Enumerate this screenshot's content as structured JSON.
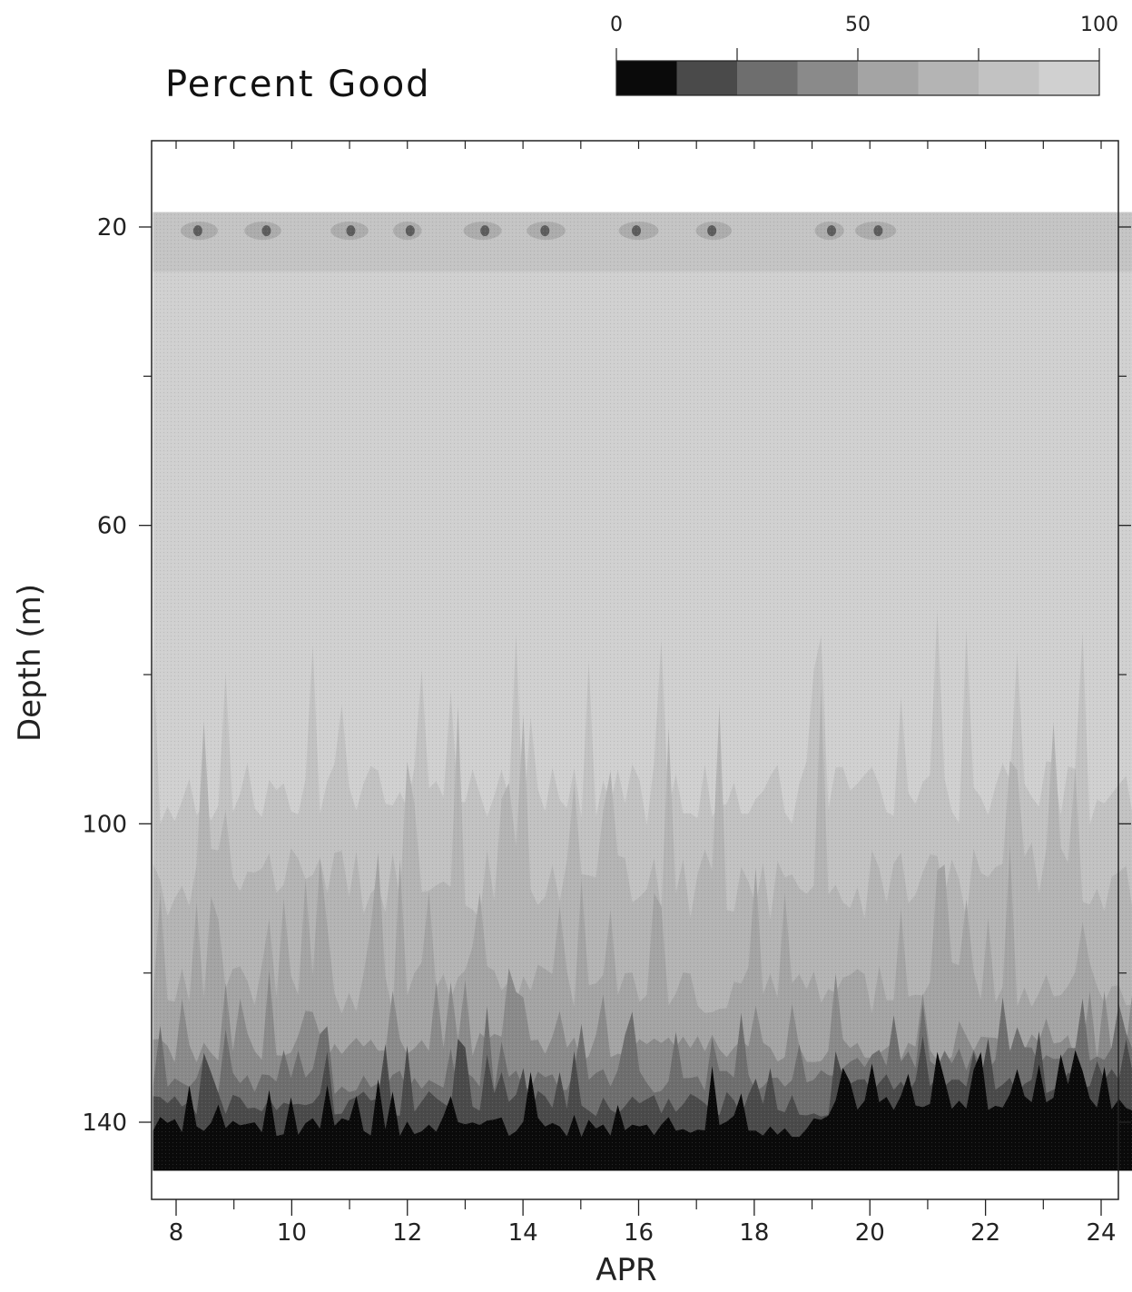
{
  "chart_data": {
    "type": "heatmap",
    "title": "Percent Good",
    "xlabel": "APR",
    "ylabel": "Depth (m)",
    "x_unit": "day of April",
    "xlim": [
      7.6,
      24.6
    ],
    "ylim": [
      150,
      13
    ],
    "data_extent": {
      "x": [
        7.6,
        24.6
      ],
      "depth": [
        18,
        146.5
      ]
    },
    "x_major_ticks": [
      8,
      10,
      12,
      14,
      16,
      18,
      20,
      22,
      24
    ],
    "x_tick_labels": [
      "8",
      "10",
      "12",
      "14",
      "16",
      "18",
      "20",
      "22",
      "24"
    ],
    "x_minor_ticks": [
      9,
      11,
      13,
      15,
      17,
      19,
      21,
      23
    ],
    "y_major_ticks": [
      20,
      60,
      100,
      140
    ],
    "y_tick_labels": [
      "20",
      "60",
      "100",
      "140"
    ],
    "y_minor_ticks": [
      40,
      80,
      120
    ],
    "colorbar": {
      "ticks": [
        0,
        50,
        100
      ],
      "tick_labels": [
        "0",
        "50",
        "100"
      ],
      "minor_ticks": [
        25,
        75
      ],
      "levels": [
        0,
        12.5,
        25,
        37.5,
        50,
        62.5,
        75,
        87.5,
        100
      ],
      "colors": [
        "#0a0a0a",
        "#4a4a4a",
        "#6e6e6e",
        "#8a8a8a",
        "#a4a4a4",
        "#b4b4b4",
        "#c2c2c2",
        "#d0d0d0"
      ]
    },
    "field_description": {
      "near_surface_band_depth": [
        18,
        26
      ],
      "near_surface_dark_spots_days": [
        8.4,
        9.5,
        11.0,
        12.0,
        13.3,
        14.4,
        16.0,
        17.3,
        19.3,
        20.1
      ],
      "mid_water_percent_good": 92,
      "degradation_onset_depth_approx": [
        88,
        100
      ],
      "bottom_zero_depth_approx": [
        136,
        146.5
      ]
    }
  }
}
